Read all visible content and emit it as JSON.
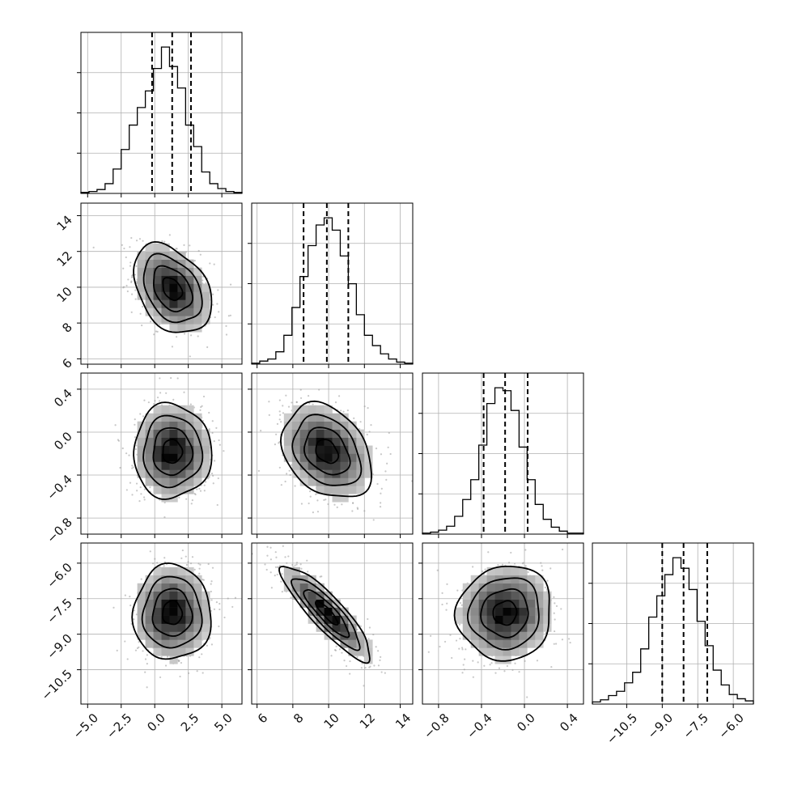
{
  "chart_data": {
    "type": "corner",
    "grid": true,
    "parameters": [
      {
        "index": 0,
        "mean": 1.3,
        "sd": 1.45,
        "range": [
          -5.5,
          6.5
        ],
        "ticks": [
          -5.0,
          -2.5,
          0.0,
          2.5,
          5.0
        ],
        "tick_labels": [
          "−5.0",
          "−2.5",
          "0.0",
          "2.5",
          "5.0"
        ],
        "quantiles": [
          -0.2,
          1.3,
          2.7
        ],
        "hist_counts": [
          1,
          2,
          4,
          10,
          25,
          45,
          70,
          88,
          105,
          128,
          150,
          130,
          108,
          70,
          48,
          22,
          10,
          5,
          2,
          1
        ]
      },
      {
        "index": 1,
        "mean": 9.9,
        "sd": 1.25,
        "range": [
          5.7,
          14.7
        ],
        "ticks": [
          6,
          8,
          10,
          12,
          14
        ],
        "tick_labels": [
          "6",
          "8",
          "10",
          "12",
          "14"
        ],
        "quantiles": [
          8.6,
          9.9,
          11.1
        ],
        "hist_counts": [
          1,
          3,
          5,
          12,
          28,
          55,
          85,
          115,
          135,
          142,
          130,
          105,
          78,
          48,
          28,
          18,
          10,
          5,
          2,
          1
        ]
      },
      {
        "index": 2,
        "mean": -0.18,
        "sd": 0.22,
        "range": [
          -0.95,
          0.55
        ],
        "ticks": [
          -0.8,
          -0.4,
          0.0,
          0.4
        ],
        "tick_labels": [
          "−0.8",
          "−0.4",
          "0.0",
          "0.4"
        ],
        "quantiles": [
          -0.38,
          -0.18,
          0.03
        ],
        "hist_counts": [
          1,
          2,
          4,
          8,
          18,
          35,
          55,
          90,
          132,
          148,
          145,
          125,
          88,
          55,
          30,
          15,
          7,
          3,
          1,
          1
        ]
      },
      {
        "index": 3,
        "mean": -8.1,
        "sd": 1.0,
        "range": [
          -11.95,
          -5.15
        ],
        "ticks": [
          -10.5,
          -9.0,
          -7.5,
          -6.0
        ],
        "tick_labels": [
          "−10.5",
          "−9.0",
          "−7.5",
          "−6.0"
        ],
        "quantiles": [
          -9.0,
          -8.1,
          -7.1
        ],
        "hist_counts": [
          2,
          4,
          8,
          12,
          20,
          30,
          52,
          82,
          102,
          122,
          138,
          128,
          108,
          78,
          55,
          32,
          18,
          9,
          5,
          3
        ]
      }
    ],
    "correlations": [
      {
        "x": 0,
        "y": 1,
        "rho": -0.35
      },
      {
        "x": 0,
        "y": 2,
        "rho": 0.0
      },
      {
        "x": 1,
        "y": 2,
        "rho": -0.3
      },
      {
        "x": 0,
        "y": 3,
        "rho": 0.0
      },
      {
        "x": 1,
        "y": 3,
        "rho": -0.88
      },
      {
        "x": 2,
        "y": 3,
        "rho": 0.05
      }
    ]
  }
}
